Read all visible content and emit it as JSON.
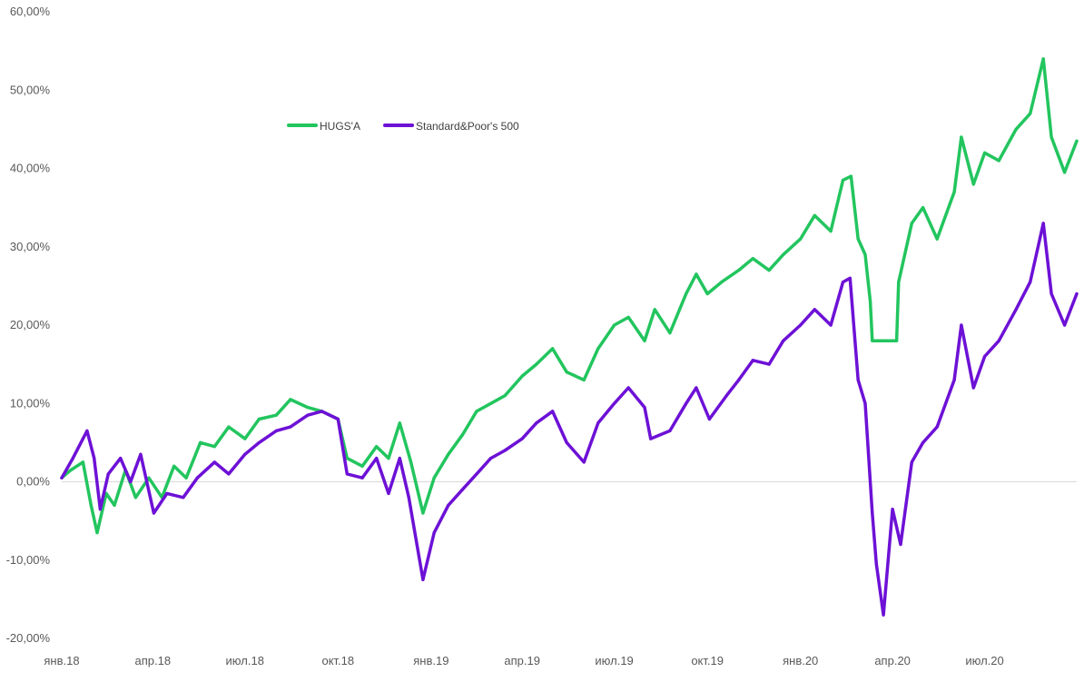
{
  "chart_data": {
    "type": "line",
    "title": "",
    "xlabel": "",
    "ylabel": "",
    "x_range": [
      "2018-01-01",
      "2020-09-30"
    ],
    "ylim": [
      -20,
      60
    ],
    "y_unit": "percent",
    "y_ticks": [
      {
        "value": 60,
        "label": "60,00%"
      },
      {
        "value": 50,
        "label": "50,00%"
      },
      {
        "value": 40,
        "label": "40,00%"
      },
      {
        "value": 30,
        "label": "30,00%"
      },
      {
        "value": 20,
        "label": "20,00%"
      },
      {
        "value": 10,
        "label": "10,00%"
      },
      {
        "value": 0,
        "label": "0,00%"
      },
      {
        "value": -10,
        "label": "-10,00%"
      },
      {
        "value": -20,
        "label": "-20,00%"
      }
    ],
    "x_ticks": [
      {
        "date": "2018-01-01",
        "label": "янв.18"
      },
      {
        "date": "2018-04-01",
        "label": "апр.18"
      },
      {
        "date": "2018-07-01",
        "label": "июл.18"
      },
      {
        "date": "2018-10-01",
        "label": "окт.18"
      },
      {
        "date": "2019-01-01",
        "label": "янв.19"
      },
      {
        "date": "2019-04-01",
        "label": "апр.19"
      },
      {
        "date": "2019-07-01",
        "label": "июл.19"
      },
      {
        "date": "2019-10-01",
        "label": "окт.19"
      },
      {
        "date": "2020-01-01",
        "label": "янв.20"
      },
      {
        "date": "2020-04-01",
        "label": "апр.20"
      },
      {
        "date": "2020-07-01",
        "label": "июл.20"
      }
    ],
    "grid": false,
    "zero_line": true,
    "legend_position": "top-center",
    "series": [
      {
        "name": "HUGS'A",
        "color": "#22c55e",
        "points": [
          [
            "2018-01-01",
            0.5
          ],
          [
            "2018-01-10",
            1.5
          ],
          [
            "2018-01-22",
            2.5
          ],
          [
            "2018-01-30",
            -3.0
          ],
          [
            "2018-02-05",
            -6.5
          ],
          [
            "2018-02-14",
            -1.5
          ],
          [
            "2018-02-22",
            -3.0
          ],
          [
            "2018-03-05",
            1.5
          ],
          [
            "2018-03-15",
            -2.0
          ],
          [
            "2018-03-28",
            0.5
          ],
          [
            "2018-04-10",
            -2.0
          ],
          [
            "2018-04-22",
            2.0
          ],
          [
            "2018-05-04",
            0.5
          ],
          [
            "2018-05-18",
            5.0
          ],
          [
            "2018-06-01",
            4.5
          ],
          [
            "2018-06-15",
            7.0
          ],
          [
            "2018-07-01",
            5.5
          ],
          [
            "2018-07-15",
            8.0
          ],
          [
            "2018-08-01",
            8.5
          ],
          [
            "2018-08-15",
            10.5
          ],
          [
            "2018-09-01",
            9.5
          ],
          [
            "2018-09-15",
            9.0
          ],
          [
            "2018-10-01",
            8.0
          ],
          [
            "2018-10-10",
            3.0
          ],
          [
            "2018-10-25",
            2.0
          ],
          [
            "2018-11-08",
            4.5
          ],
          [
            "2018-11-20",
            3.0
          ],
          [
            "2018-12-01",
            7.5
          ],
          [
            "2018-12-12",
            2.5
          ],
          [
            "2018-12-24",
            -4.0
          ],
          [
            "2019-01-04",
            0.5
          ],
          [
            "2019-01-18",
            3.5
          ],
          [
            "2019-02-01",
            6.0
          ],
          [
            "2019-02-15",
            9.0
          ],
          [
            "2019-03-01",
            10.0
          ],
          [
            "2019-03-15",
            11.0
          ],
          [
            "2019-04-01",
            13.5
          ],
          [
            "2019-04-15",
            15.0
          ],
          [
            "2019-05-01",
            17.0
          ],
          [
            "2019-05-15",
            14.0
          ],
          [
            "2019-06-01",
            13.0
          ],
          [
            "2019-06-15",
            17.0
          ],
          [
            "2019-07-01",
            20.0
          ],
          [
            "2019-07-15",
            21.0
          ],
          [
            "2019-07-31",
            18.0
          ],
          [
            "2019-08-10",
            22.0
          ],
          [
            "2019-08-25",
            19.0
          ],
          [
            "2019-09-10",
            24.0
          ],
          [
            "2019-09-20",
            26.5
          ],
          [
            "2019-10-01",
            24.0
          ],
          [
            "2019-10-15",
            25.5
          ],
          [
            "2019-11-01",
            27.0
          ],
          [
            "2019-11-15",
            28.5
          ],
          [
            "2019-12-01",
            27.0
          ],
          [
            "2019-12-15",
            29.0
          ],
          [
            "2020-01-01",
            31.0
          ],
          [
            "2020-01-15",
            34.0
          ],
          [
            "2020-01-31",
            32.0
          ],
          [
            "2020-02-12",
            38.5
          ],
          [
            "2020-02-20",
            39.0
          ],
          [
            "2020-02-27",
            31.0
          ],
          [
            "2020-03-05",
            29.0
          ],
          [
            "2020-03-10",
            23.0
          ],
          [
            "2020-03-12",
            18.0
          ],
          [
            "2020-04-05",
            18.0
          ],
          [
            "2020-04-07",
            25.5
          ],
          [
            "2020-04-20",
            33.0
          ],
          [
            "2020-05-01",
            35.0
          ],
          [
            "2020-05-15",
            31.0
          ],
          [
            "2020-06-01",
            37.0
          ],
          [
            "2020-06-08",
            44.0
          ],
          [
            "2020-06-20",
            38.0
          ],
          [
            "2020-07-01",
            42.0
          ],
          [
            "2020-07-15",
            41.0
          ],
          [
            "2020-08-01",
            45.0
          ],
          [
            "2020-08-15",
            47.0
          ],
          [
            "2020-08-28",
            54.0
          ],
          [
            "2020-09-05",
            44.0
          ],
          [
            "2020-09-18",
            39.5
          ],
          [
            "2020-09-30",
            43.5
          ]
        ]
      },
      {
        "name": "Standard&Poor's 500",
        "color": "#6d11d6",
        "points": [
          [
            "2018-01-01",
            0.5
          ],
          [
            "2018-01-12",
            3.0
          ],
          [
            "2018-01-22",
            5.5
          ],
          [
            "2018-01-26",
            6.5
          ],
          [
            "2018-02-02",
            3.0
          ],
          [
            "2018-02-08",
            -3.5
          ],
          [
            "2018-02-16",
            1.0
          ],
          [
            "2018-02-28",
            3.0
          ],
          [
            "2018-03-10",
            0.0
          ],
          [
            "2018-03-20",
            3.5
          ],
          [
            "2018-04-02",
            -4.0
          ],
          [
            "2018-04-15",
            -1.5
          ],
          [
            "2018-05-01",
            -2.0
          ],
          [
            "2018-05-15",
            0.5
          ],
          [
            "2018-06-01",
            2.5
          ],
          [
            "2018-06-15",
            1.0
          ],
          [
            "2018-07-01",
            3.5
          ],
          [
            "2018-07-15",
            5.0
          ],
          [
            "2018-08-01",
            6.5
          ],
          [
            "2018-08-15",
            7.0
          ],
          [
            "2018-09-01",
            8.5
          ],
          [
            "2018-09-15",
            9.0
          ],
          [
            "2018-10-01",
            8.0
          ],
          [
            "2018-10-10",
            1.0
          ],
          [
            "2018-10-25",
            0.5
          ],
          [
            "2018-11-08",
            3.0
          ],
          [
            "2018-11-20",
            -1.5
          ],
          [
            "2018-12-01",
            3.0
          ],
          [
            "2018-12-10",
            -2.0
          ],
          [
            "2018-12-24",
            -12.5
          ],
          [
            "2019-01-04",
            -6.5
          ],
          [
            "2019-01-18",
            -3.0
          ],
          [
            "2019-02-01",
            -1.0
          ],
          [
            "2019-02-15",
            1.0
          ],
          [
            "2019-03-01",
            3.0
          ],
          [
            "2019-03-15",
            4.0
          ],
          [
            "2019-04-01",
            5.5
          ],
          [
            "2019-04-15",
            7.5
          ],
          [
            "2019-05-01",
            9.0
          ],
          [
            "2019-05-15",
            5.0
          ],
          [
            "2019-06-01",
            2.5
          ],
          [
            "2019-06-15",
            7.5
          ],
          [
            "2019-07-01",
            10.0
          ],
          [
            "2019-07-15",
            12.0
          ],
          [
            "2019-07-31",
            9.5
          ],
          [
            "2019-08-06",
            5.5
          ],
          [
            "2019-08-25",
            6.5
          ],
          [
            "2019-09-10",
            10.0
          ],
          [
            "2019-09-20",
            12.0
          ],
          [
            "2019-10-03",
            8.0
          ],
          [
            "2019-10-20",
            11.0
          ],
          [
            "2019-11-01",
            13.0
          ],
          [
            "2019-11-15",
            15.5
          ],
          [
            "2019-12-01",
            15.0
          ],
          [
            "2019-12-15",
            18.0
          ],
          [
            "2020-01-01",
            20.0
          ],
          [
            "2020-01-15",
            22.0
          ],
          [
            "2020-01-31",
            20.0
          ],
          [
            "2020-02-12",
            25.5
          ],
          [
            "2020-02-19",
            26.0
          ],
          [
            "2020-02-27",
            13.0
          ],
          [
            "2020-03-05",
            10.0
          ],
          [
            "2020-03-12",
            -4.0
          ],
          [
            "2020-03-16",
            -10.5
          ],
          [
            "2020-03-23",
            -17.0
          ],
          [
            "2020-04-01",
            -3.5
          ],
          [
            "2020-04-09",
            -8.0
          ],
          [
            "2020-04-20",
            2.5
          ],
          [
            "2020-05-01",
            5.0
          ],
          [
            "2020-05-15",
            7.0
          ],
          [
            "2020-06-01",
            13.0
          ],
          [
            "2020-06-08",
            20.0
          ],
          [
            "2020-06-20",
            12.0
          ],
          [
            "2020-07-01",
            16.0
          ],
          [
            "2020-07-15",
            18.0
          ],
          [
            "2020-08-01",
            22.0
          ],
          [
            "2020-08-15",
            25.5
          ],
          [
            "2020-08-28",
            33.0
          ],
          [
            "2020-09-05",
            24.0
          ],
          [
            "2020-09-18",
            20.0
          ],
          [
            "2020-09-30",
            24.0
          ]
        ]
      }
    ]
  }
}
